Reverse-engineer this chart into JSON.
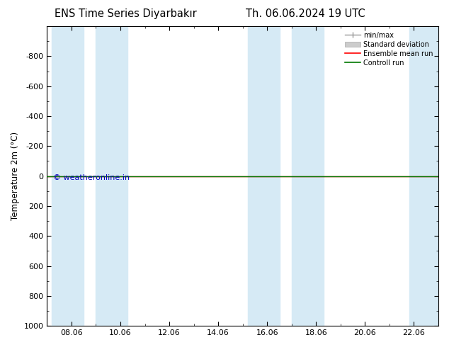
{
  "title_left": "ENS Time Series Diyarbakır",
  "title_right": "Th. 06.06.2024 19 UTC",
  "ylabel": "Temperature 2m (°C)",
  "watermark": "© weatheronline.in",
  "ylim_bottom": 1000,
  "ylim_top": -1000,
  "yticks": [
    -800,
    -600,
    -400,
    -200,
    0,
    200,
    400,
    600,
    800,
    1000
  ],
  "xtick_labels": [
    "08.06",
    "10.06",
    "12.06",
    "14.06",
    "16.06",
    "18.06",
    "20.06",
    "22.06"
  ],
  "xtick_positions": [
    8,
    10,
    12,
    14,
    16,
    18,
    20,
    22
  ],
  "x_min": 7.0,
  "x_max": 23.0,
  "shaded_bands": [
    {
      "x_start": 7.2,
      "x_end": 8.5
    },
    {
      "x_start": 9.0,
      "x_end": 10.3
    },
    {
      "x_start": 15.2,
      "x_end": 16.5
    },
    {
      "x_start": 17.0,
      "x_end": 18.3
    },
    {
      "x_start": 21.8,
      "x_end": 23.0
    }
  ],
  "band_color": "#d6eaf5",
  "ensemble_mean_color": "#ff0000",
  "control_run_color": "#007700",
  "minmax_color": "#999999",
  "std_dev_facecolor": "#cccccc",
  "std_dev_edgecolor": "#aaaaaa",
  "background_color": "#ffffff",
  "legend_fontsize": 7,
  "title_fontsize": 10.5,
  "ylabel_fontsize": 8.5,
  "tick_fontsize": 8,
  "watermark_color": "#0000bb",
  "watermark_fontsize": 8
}
